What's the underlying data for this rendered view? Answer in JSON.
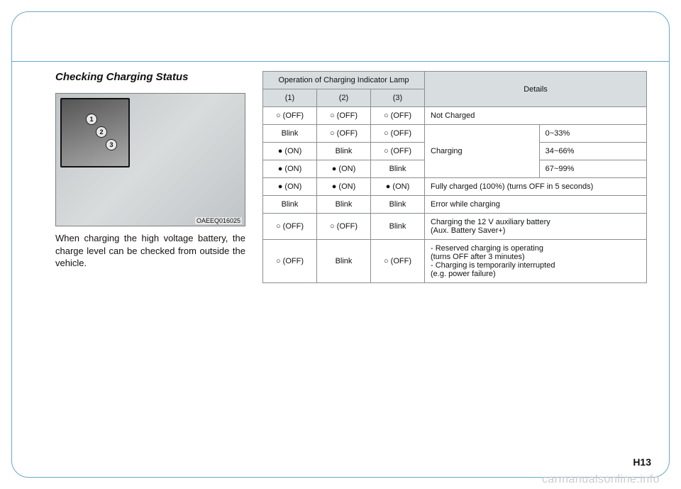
{
  "page": {
    "heading": "Checking Charging Status",
    "image_code": "OAEEQ016025",
    "callout_numbers": [
      "1",
      "2",
      "3"
    ],
    "caption": "When charging the high voltage bat­tery, the charge level can be checked from outside the vehicle.",
    "page_number": "H13",
    "watermark": "carmanualsonline.info"
  },
  "table": {
    "header_top": "Operation of Charging Indicator Lamp",
    "header_details": "Details",
    "subheads": [
      "(1)",
      "(2)",
      "(3)"
    ],
    "rows": [
      {
        "c1": "○ (OFF)",
        "c2": "○ (OFF)",
        "c3": "○ (OFF)",
        "details": "Not Charged",
        "colspan": 2
      },
      {
        "c1": "Blink",
        "c2": "○ (OFF)",
        "c3": "○ (OFF)",
        "d1": "Charging",
        "d2": "0~33%",
        "rowspan_d1": 3
      },
      {
        "c1": "● (ON)",
        "c2": "Blink",
        "c3": "○ (OFF)",
        "d2": "34~66%"
      },
      {
        "c1": "● (ON)",
        "c2": "● (ON)",
        "c3": "Blink",
        "d2": "67~99%"
      },
      {
        "c1": "● (ON)",
        "c2": "● (ON)",
        "c3": "● (ON)",
        "details": "Fully charged (100%) (turns OFF in 5 seconds)",
        "colspan": 2
      },
      {
        "c1": "Blink",
        "c2": "Blink",
        "c3": "Blink",
        "details": "Error while charging",
        "colspan": 2
      },
      {
        "c1": "○ (OFF)",
        "c2": "○ (OFF)",
        "c3": "Blink",
        "details": "Charging the 12 V auxiliary battery\n(Aux. Battery Saver+)",
        "colspan": 2
      },
      {
        "c1": "○ (OFF)",
        "c2": "Blink",
        "c3": "○ (OFF)",
        "details": "- Reserved charging is operating\n  (turns OFF after 3 minutes)\n- Charging is temporarily interrupted\n  (e.g. power failure)",
        "colspan": 2
      }
    ],
    "colors": {
      "border": "#8a8f91",
      "header_bg": "#d8dddf",
      "text": "#111111"
    }
  }
}
